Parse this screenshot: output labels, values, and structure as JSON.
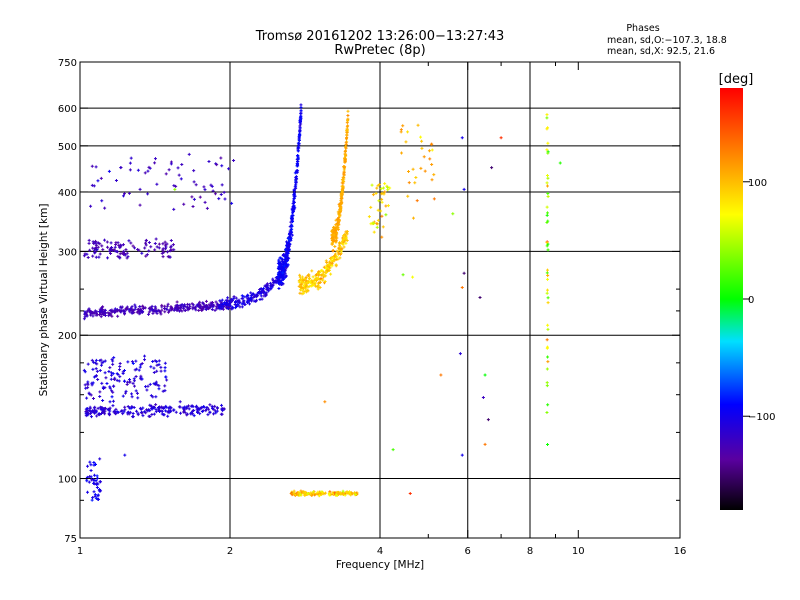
{
  "chart_data": {
    "type": "scatter",
    "title": "Tromsø 20161202 13:26:00−13:27:43",
    "subtitle": "RwPretec (8p)",
    "stats": {
      "heading": "Phases",
      "line1": "mean, sd,O:−107.3, 18.8",
      "line2": "mean, sd,X:  92.5, 21.6"
    },
    "xlabel": "Frequency [MHz]",
    "ylabel": "Stationary phase Virtual Height [km]",
    "xscale": "log",
    "yscale": "log",
    "xlim": [
      1,
      16
    ],
    "ylim": [
      75,
      750
    ],
    "xticks": [
      {
        "value": 1,
        "label": "1"
      },
      {
        "value": 2,
        "label": "2"
      },
      {
        "value": 4,
        "label": "4"
      },
      {
        "value": 6,
        "label": "6"
      },
      {
        "value": 8,
        "label": "8"
      },
      {
        "value": 10,
        "label": "10"
      },
      {
        "value": 16,
        "label": "16"
      }
    ],
    "xgrid": [
      2,
      4,
      6,
      8
    ],
    "xminor": [
      5,
      7,
      9
    ],
    "yticks": [
      {
        "value": 75,
        "label": "75"
      },
      {
        "value": 100,
        "label": "100"
      },
      {
        "value": 200,
        "label": "200"
      },
      {
        "value": 300,
        "label": "300"
      },
      {
        "value": 400,
        "label": "400"
      },
      {
        "value": 500,
        "label": "500"
      },
      {
        "value": 600,
        "label": "600"
      },
      {
        "value": 750,
        "label": "750"
      }
    ],
    "ygrid": [
      100,
      200,
      300,
      400,
      500,
      600
    ],
    "yminor": [
      90,
      125,
      150,
      175,
      225,
      250
    ],
    "grid": true,
    "colorbar": {
      "label": "[deg]",
      "min": -180,
      "max": 180,
      "ticks": [
        {
          "value": 100,
          "label": "100"
        },
        {
          "value": 0,
          "label": "0"
        },
        {
          "value": -100,
          "label": "−100"
        }
      ]
    },
    "traces": [
      {
        "f0": 1.02,
        "f1": 2.02,
        "h0": 222,
        "h1": 232,
        "shape": "flat",
        "phase": -125,
        "sd": 12,
        "n": 320,
        "hs": 5
      },
      {
        "f0": 1.9,
        "f1": 2.6,
        "h0": 232,
        "h1": 275,
        "shape": "curve",
        "phase": -105,
        "sd": 14,
        "n": 180,
        "hs": 7
      },
      {
        "f0": 2.5,
        "f1": 2.78,
        "h0": 270,
        "h1": 600,
        "shape": "curve",
        "phase": -95,
        "sd": 14,
        "n": 360,
        "hs": 20
      },
      {
        "f0": 1.02,
        "f1": 1.95,
        "h0": 138,
        "h1": 140,
        "shape": "flat",
        "phase": -110,
        "sd": 14,
        "n": 230,
        "hs": 4
      },
      {
        "f0": 1.02,
        "f1": 1.5,
        "h0": 148,
        "h1": 178,
        "shape": "scatter",
        "phase": -108,
        "sd": 16,
        "n": 150,
        "hs": 5
      },
      {
        "f0": 1.02,
        "f1": 1.55,
        "h0": 292,
        "h1": 315,
        "shape": "scatter",
        "phase": -125,
        "sd": 14,
        "n": 120,
        "hs": 4
      },
      {
        "f0": 1.05,
        "f1": 2.05,
        "h0": 370,
        "h1": 480,
        "shape": "scatter",
        "phase": -120,
        "sd": 16,
        "n": 70,
        "hs": 6
      },
      {
        "f0": 1.03,
        "f1": 1.1,
        "h0": 90,
        "h1": 110,
        "shape": "scatter",
        "phase": -100,
        "sd": 15,
        "n": 45,
        "hs": 3
      },
      {
        "f0": 2.75,
        "f1": 3.45,
        "h0": 255,
        "h1": 330,
        "shape": "curve",
        "phase": 95,
        "sd": 22,
        "n": 220,
        "hs": 12
      },
      {
        "f0": 3.2,
        "f1": 3.45,
        "h0": 320,
        "h1": 580,
        "shape": "curve",
        "phase": 108,
        "sd": 12,
        "n": 260,
        "hs": 16
      },
      {
        "f0": 2.65,
        "f1": 3.6,
        "h0": 93,
        "h1": 93,
        "shape": "flat",
        "phase": 95,
        "sd": 40,
        "n": 140,
        "hs": 1
      },
      {
        "f0": 3.8,
        "f1": 4.2,
        "h0": 330,
        "h1": 420,
        "shape": "scatter",
        "phase": 80,
        "sd": 40,
        "n": 40,
        "hs": 10
      },
      {
        "f0": 4.4,
        "f1": 5.2,
        "h0": 360,
        "h1": 560,
        "shape": "scatter",
        "phase": 110,
        "sd": 30,
        "n": 30,
        "hs": 15
      },
      {
        "f0": 8.65,
        "f1": 8.7,
        "h0": 110,
        "h1": 640,
        "shape": "scatter",
        "phase": 60,
        "sd": 90,
        "n": 45,
        "hs": 10
      }
    ],
    "stray_points": [
      [
        1.23,
        112,
        -100
      ],
      [
        4.25,
        115,
        20
      ],
      [
        4.6,
        93,
        160
      ],
      [
        5.85,
        112,
        -100
      ],
      [
        6.5,
        118,
        130
      ],
      [
        6.6,
        133,
        -150
      ],
      [
        6.45,
        148,
        -120
      ],
      [
        6.5,
        165,
        0
      ],
      [
        5.3,
        165,
        130
      ],
      [
        5.8,
        183,
        -110
      ],
      [
        5.85,
        252,
        130
      ],
      [
        5.9,
        270,
        -150
      ],
      [
        6.35,
        240,
        -150
      ],
      [
        5.9,
        405,
        -100
      ],
      [
        5.6,
        360,
        40
      ],
      [
        6.7,
        450,
        -150
      ],
      [
        7.0,
        520,
        160
      ],
      [
        5.85,
        520,
        -100
      ],
      [
        9.2,
        460,
        10
      ],
      [
        3.1,
        145,
        120
      ],
      [
        4.65,
        265,
        70
      ],
      [
        4.45,
        268,
        30
      ],
      [
        1.55,
        405,
        40
      ],
      [
        1.32,
        405,
        -120
      ]
    ]
  }
}
